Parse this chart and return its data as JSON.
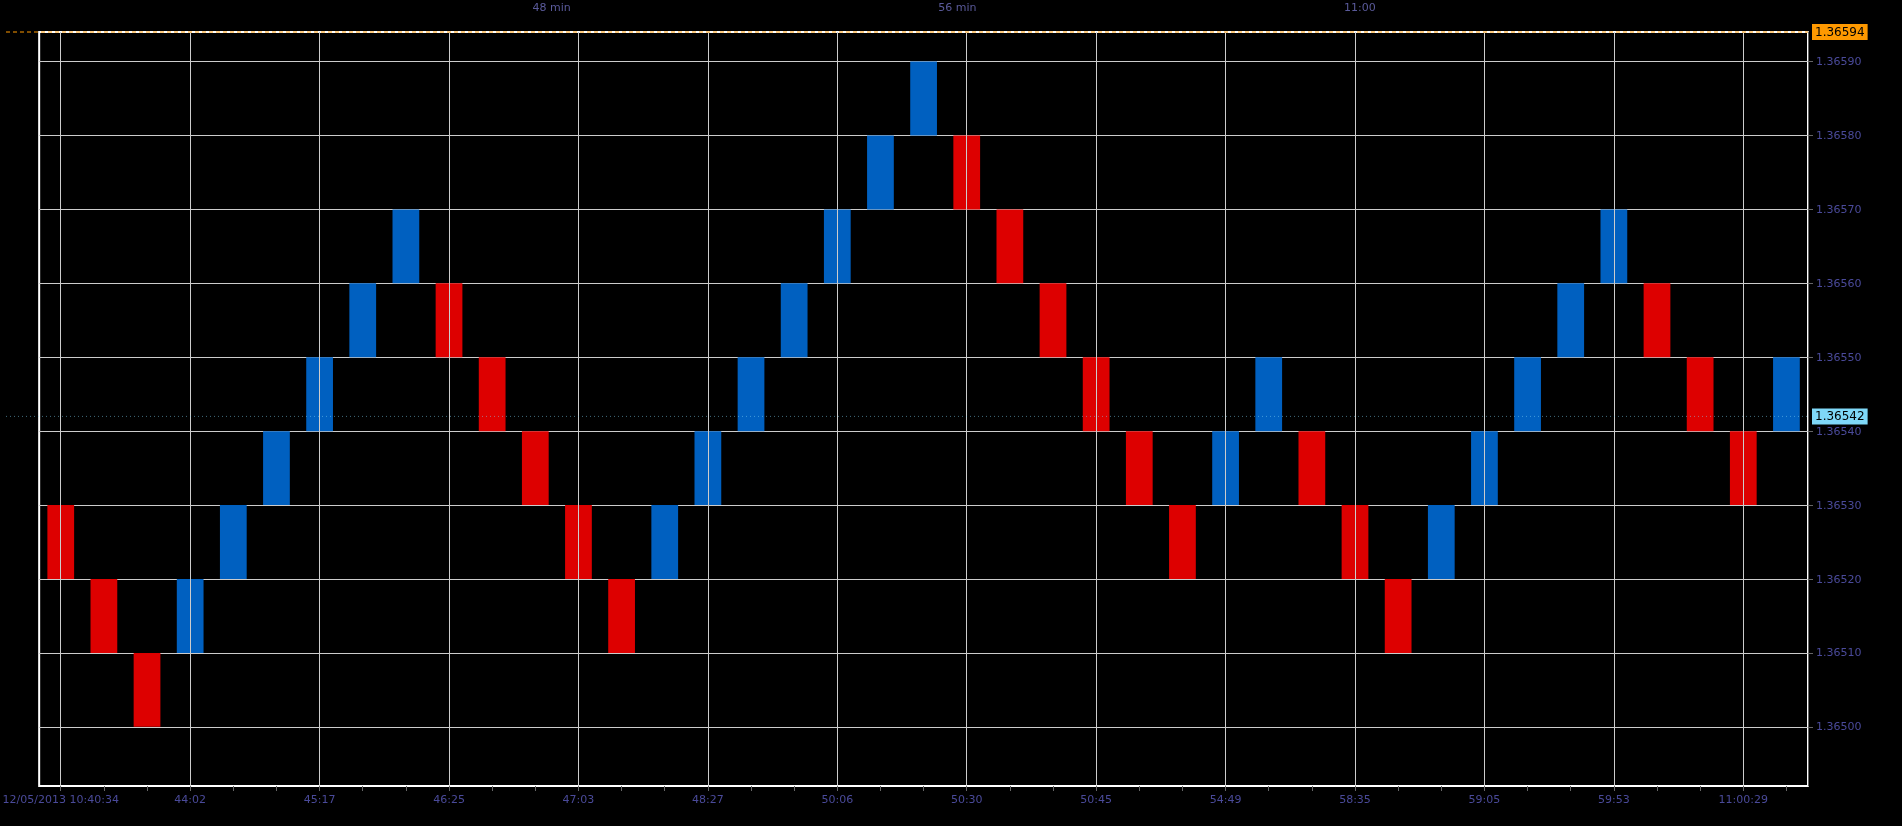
{
  "chart_data": {
    "type": "bar",
    "categories": [
      "12/05/2013 10:40:34",
      null,
      null,
      "44:02",
      null,
      null,
      "45:17",
      null,
      null,
      "46:25",
      null,
      null,
      "47:03",
      null,
      null,
      "48:27",
      null,
      null,
      "50:06",
      null,
      null,
      "50:30",
      null,
      null,
      "50:45",
      null,
      null,
      "54:49",
      null,
      null,
      "58:35",
      null,
      null,
      "59:05",
      null,
      null,
      "59:53",
      null,
      null,
      "11:00:29",
      null
    ],
    "base": [
      1.3652,
      1.3651,
      1.365,
      1.3651,
      1.3652,
      1.3653,
      1.3654,
      1.3655,
      1.3656,
      1.3655,
      1.3654,
      1.3653,
      1.3652,
      1.3651,
      1.3652,
      1.3653,
      1.3654,
      1.3655,
      1.3656,
      1.3657,
      1.3658,
      1.3657,
      1.3656,
      1.3655,
      1.3654,
      1.3653,
      1.3652,
      1.3653,
      1.3654,
      1.3653,
      1.3652,
      1.3651,
      1.3652,
      1.3653,
      1.3654,
      1.3655,
      1.3656,
      1.3655,
      1.3654,
      1.3653,
      1.3654
    ],
    "values": [
      0.0001,
      0.0001,
      0.0001,
      0.0001,
      0.0001,
      0.0001,
      0.0001,
      0.0001,
      0.0001,
      0.0001,
      0.0001,
      0.0001,
      0.0001,
      0.0001,
      0.0001,
      0.0001,
      0.0001,
      0.0001,
      0.0001,
      0.0001,
      0.0001,
      0.0001,
      0.0001,
      0.0001,
      0.0001,
      0.0001,
      0.0001,
      0.0001,
      0.0001,
      0.0001,
      0.0001,
      0.0001,
      0.0001,
      0.0001,
      0.0001,
      0.0001,
      0.0001,
      0.0001,
      0.0001,
      0.0001,
      0.0001
    ],
    "colors": [
      "#dd0000",
      "#dd0000",
      "#dd0000",
      "#0060c0",
      "#0060c0",
      "#0060c0",
      "#0060c0",
      "#0060c0",
      "#0060c0",
      "#dd0000",
      "#dd0000",
      "#dd0000",
      "#dd0000",
      "#dd0000",
      "#0060c0",
      "#0060c0",
      "#0060c0",
      "#0060c0",
      "#0060c0",
      "#0060c0",
      "#0060c0",
      "#dd0000",
      "#dd0000",
      "#dd0000",
      "#dd0000",
      "#dd0000",
      "#dd0000",
      "#0060c0",
      "#0060c0",
      "#dd0000",
      "#dd0000",
      "#dd0000",
      "#0060c0",
      "#0060c0",
      "#0060c0",
      "#0060c0",
      "#0060c0",
      "#dd0000",
      "#dd0000",
      "#dd0000",
      "#0060c0"
    ],
    "ylim": [
      1.36492,
      1.36594
    ],
    "yticks": [
      {
        "value": 1.365,
        "label": "1.36500"
      },
      {
        "value": 1.3651,
        "label": "1.36510"
      },
      {
        "value": 1.3652,
        "label": "1.36520"
      },
      {
        "value": 1.3653,
        "label": "1.36530"
      },
      {
        "value": 1.3654,
        "label": "1.36540"
      },
      {
        "value": 1.3655,
        "label": "1.36550"
      },
      {
        "value": 1.3656,
        "label": "1.36560"
      },
      {
        "value": 1.3657,
        "label": "1.36570"
      },
      {
        "value": 1.3658,
        "label": "1.36580"
      },
      {
        "value": 1.3659,
        "label": "1.36590"
      }
    ],
    "ref_lines": [
      {
        "axis": "y",
        "value": 1.36594,
        "label": "1.36594",
        "color": "#ff9900",
        "line_style": "dashed"
      },
      {
        "axis": "y",
        "value": 1.36542,
        "label": "1.36542",
        "color": "#7fd8f8",
        "line_style": "dotted"
      }
    ],
    "annotations": [
      "48 min",
      "56 min",
      "11:00"
    ],
    "grid": true
  }
}
